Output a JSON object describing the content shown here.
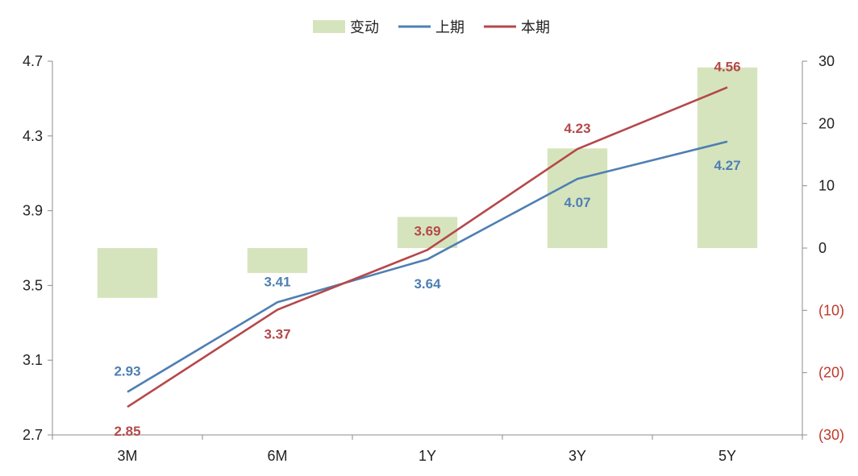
{
  "chart_data": {
    "type": "bar+line",
    "title": "",
    "categories": [
      "3M",
      "6M",
      "1Y",
      "3Y",
      "5Y"
    ],
    "legend": {
      "position": "top",
      "items": [
        {
          "name": "变动",
          "kind": "bar",
          "color": "#d6e4bd"
        },
        {
          "name": "上期",
          "kind": "line",
          "color": "#4e7fb3"
        },
        {
          "name": "本期",
          "kind": "line",
          "color": "#b5484a"
        }
      ]
    },
    "y_left": {
      "range": [
        2.7,
        4.7
      ],
      "ticks": [
        "2.7",
        "3.1",
        "3.5",
        "3.9",
        "4.3",
        "4.7"
      ]
    },
    "y_right": {
      "range": [
        -30,
        30
      ],
      "ticks": [
        {
          "value": -30,
          "label": "(30)"
        },
        {
          "value": -20,
          "label": "(20)"
        },
        {
          "value": -10,
          "label": "(10)"
        },
        {
          "value": 0,
          "label": "0"
        },
        {
          "value": 10,
          "label": "10"
        },
        {
          "value": 20,
          "label": "20"
        },
        {
          "value": 30,
          "label": "30"
        }
      ]
    },
    "series": [
      {
        "name": "变动",
        "type": "bar",
        "axis": "right",
        "color": "#d6e4bd",
        "values": [
          -8,
          -4,
          5,
          16,
          29
        ]
      },
      {
        "name": "上期",
        "type": "line",
        "axis": "left",
        "color": "#4e7fb3",
        "values": [
          2.93,
          3.41,
          3.64,
          4.07,
          4.27
        ],
        "labels": [
          "2.93",
          "3.41",
          "3.64",
          "4.07",
          "4.27"
        ]
      },
      {
        "name": "本期",
        "type": "line",
        "axis": "left",
        "color": "#b5484a",
        "values": [
          2.85,
          3.37,
          3.69,
          4.23,
          4.56
        ],
        "labels": [
          "2.85",
          "3.37",
          "3.69",
          "4.23",
          "4.56"
        ]
      }
    ],
    "grid": false
  }
}
